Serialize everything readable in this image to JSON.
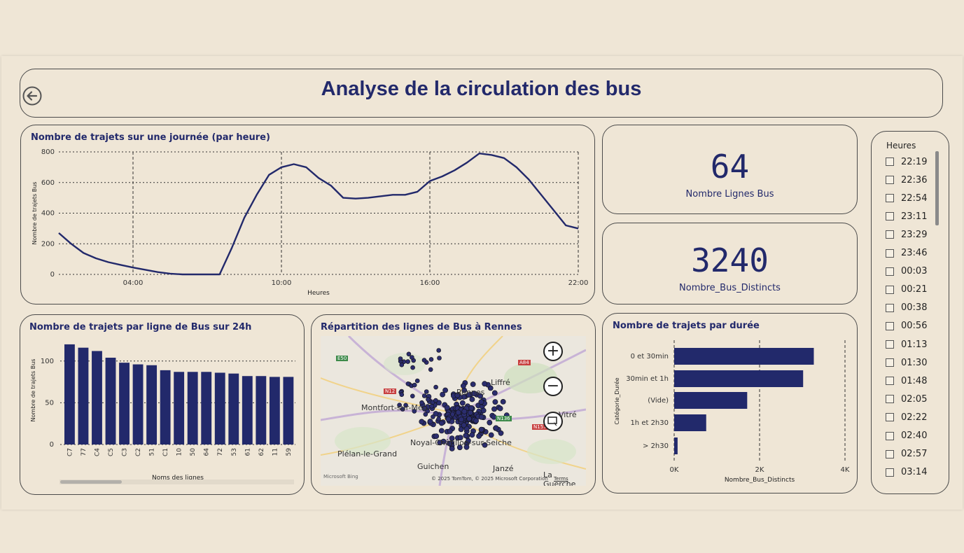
{
  "header": {
    "title": "Analyse de la circulation des bus",
    "back_icon": "back-arrow-icon"
  },
  "colors": {
    "primary": "#22296b",
    "background": "#efe6d6"
  },
  "kpis": [
    {
      "value": "64",
      "label": "Nombre Lignes Bus"
    },
    {
      "value": "3240",
      "label": "Nombre_Bus_Distincts"
    }
  ],
  "slicer": {
    "title": "Heures",
    "items": [
      "22:19",
      "22:36",
      "22:54",
      "23:11",
      "23:29",
      "23:46",
      "00:03",
      "00:21",
      "00:38",
      "00:56",
      "01:13",
      "01:30",
      "01:48",
      "02:05",
      "02:22",
      "02:40",
      "02:57",
      "03:14"
    ]
  },
  "map": {
    "title": "Répartition des lignes de Bus à Rennes",
    "places": [
      "Liffré",
      "Montfort-sur-Meu",
      "Vitré",
      "Noyal-Châtillon-sur-Seiche",
      "Plélan-le-Grand",
      "Guichen",
      "Janzé",
      "La Guerche",
      "Rennes"
    ],
    "roads": [
      "E50",
      "A84",
      "N12",
      "N157",
      "N136"
    ],
    "attribution": "© 2025 TomTom, © 2025 Microsoft Corporation",
    "terms": "Terms",
    "brand": "Microsoft Bing"
  },
  "chart_data": [
    {
      "type": "line",
      "title": "Nombre de trajets sur une journée (par heure)",
      "xlabel": "Heures",
      "ylabel": "Nombre de trajets Bus",
      "xticks": [
        "04:00",
        "10:00",
        "16:00",
        "22:00"
      ],
      "ylim": [
        0,
        800
      ],
      "yticks": [
        0,
        200,
        400,
        600,
        800
      ],
      "x_hours": [
        1,
        1.5,
        2,
        2.5,
        3,
        3.5,
        4,
        4.5,
        5,
        5.5,
        6,
        6.5,
        7,
        7.5,
        8,
        8.5,
        9,
        9.5,
        10,
        10.5,
        11,
        11.5,
        12,
        12.5,
        13,
        13.5,
        14,
        14.5,
        15,
        15.5,
        16,
        16.5,
        17,
        17.5,
        18,
        18.5,
        19,
        19.5,
        20,
        20.5,
        21,
        21.5,
        22
      ],
      "values": [
        270,
        200,
        140,
        105,
        80,
        62,
        45,
        30,
        15,
        5,
        0,
        0,
        0,
        0,
        175,
        370,
        520,
        650,
        700,
        720,
        700,
        630,
        580,
        500,
        495,
        500,
        510,
        520,
        520,
        540,
        610,
        640,
        680,
        730,
        790,
        780,
        760,
        700,
        620,
        520,
        420,
        320,
        300
      ],
      "grid": true
    },
    {
      "type": "bar",
      "title": "Nombre de trajets par ligne de Bus sur 24h",
      "xlabel": "Noms des lignes",
      "ylabel": "Nombre de trajets Bus",
      "ylim": [
        0,
        130
      ],
      "yticks": [
        0,
        50,
        100
      ],
      "categories": [
        "C7",
        "77",
        "C4",
        "C5",
        "C3",
        "C2",
        "51",
        "C1",
        "10",
        "50",
        "64",
        "72",
        "53",
        "61",
        "62",
        "11",
        "59"
      ],
      "values": [
        120,
        116,
        112,
        104,
        98,
        96,
        95,
        89,
        87,
        87,
        87,
        86,
        85,
        82,
        82,
        81,
        81
      ]
    },
    {
      "type": "bar",
      "orientation": "horizontal",
      "title": "Nombre de trajets par durée",
      "xlabel": "Nombre_Bus_Distincts",
      "ylabel": "Catégorie_Durée",
      "xticks": [
        "0K",
        "2K",
        "4K"
      ],
      "xlim": [
        0,
        4000
      ],
      "categories": [
        "0 et 30min",
        "30min et 1h",
        "(Vide)",
        "1h et 2h30",
        "> 2h30"
      ],
      "values": [
        3270,
        3020,
        1710,
        750,
        80
      ]
    }
  ]
}
